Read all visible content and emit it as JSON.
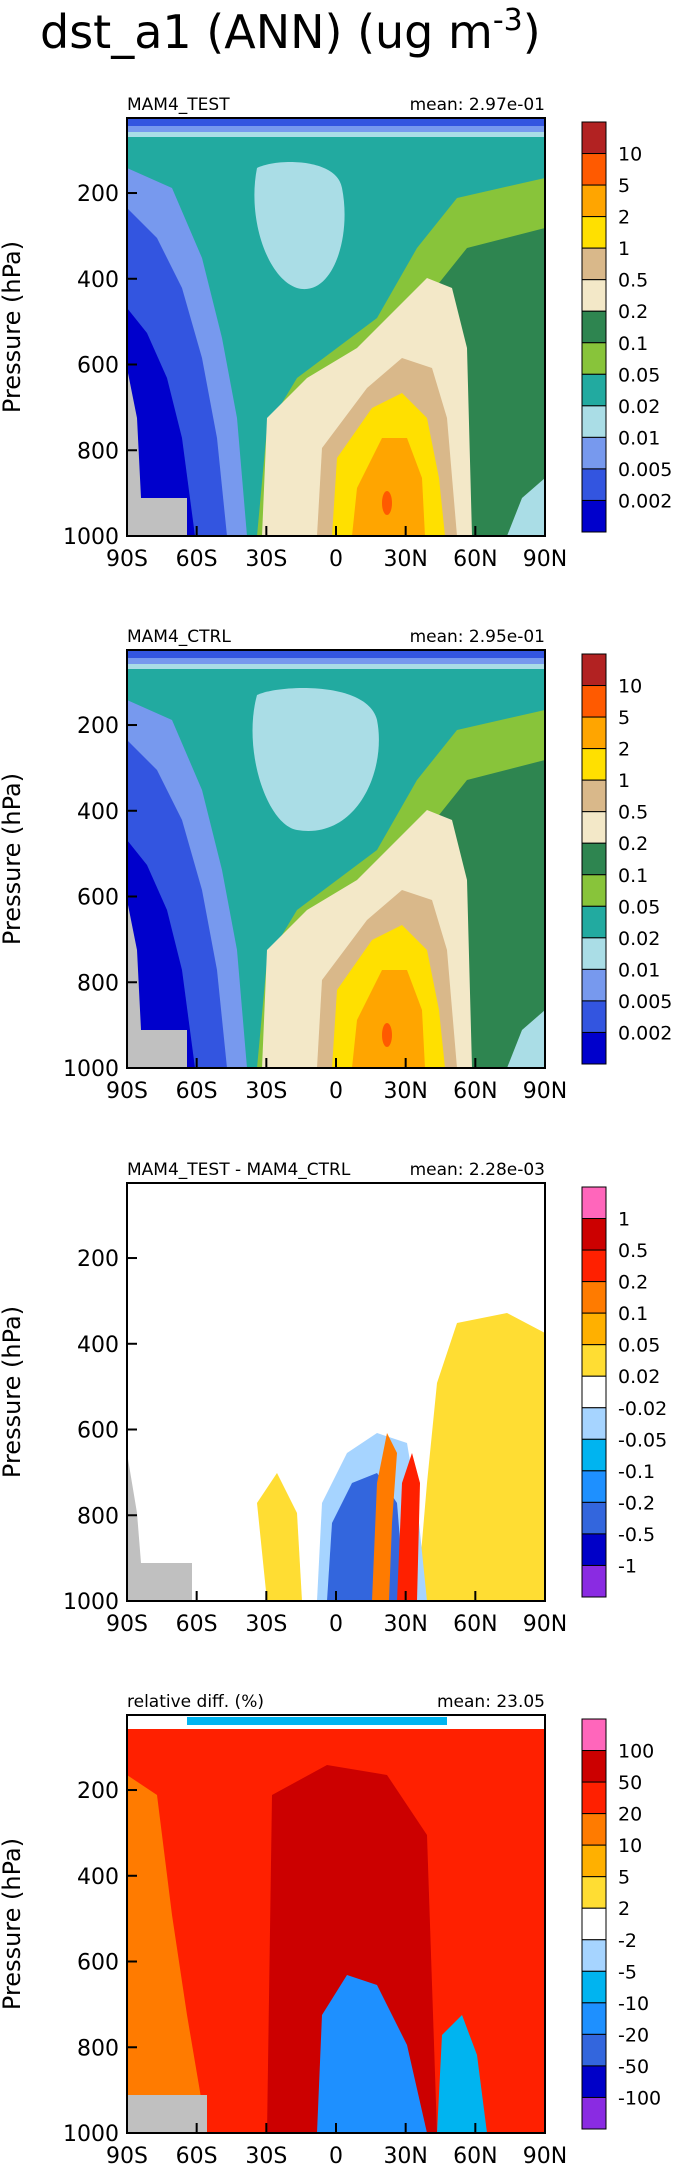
{
  "figure_title": "dst_a1 (ANN) (ug m",
  "figure_title_sup": "-3",
  "figure_title_end": ")",
  "colors": {
    "seq": [
      "#0000cc",
      "#3355e0",
      "#7799ee",
      "#aadde6",
      "#22aaa0",
      "#88c43a",
      "#2e8550",
      "#f3e8c8",
      "#d9b88a",
      "#ffe000",
      "#ffa500",
      "#ff5a00",
      "#b22222"
    ],
    "diff": [
      "#8a2be2",
      "#0000c8",
      "#3366dd",
      "#1e90ff",
      "#00b4f0",
      "#a6d4ff",
      "#ffffff",
      "#ffdd33",
      "#ffb000",
      "#ff7b00",
      "#ff2000",
      "#cc0000",
      "#ff66bb"
    ],
    "missing": "#c0c0c0",
    "grey": "#bebebe"
  },
  "chart_data": [
    {
      "type": "contour",
      "panel_label": "MAM4_TEST",
      "mean_label": "mean: 2.97e-01",
      "xlabel": "",
      "ylabel": "Pressure (hPa)",
      "x_ticks": [
        "90S",
        "60S",
        "30S",
        "0",
        "30N",
        "60N",
        "90N"
      ],
      "y_ticks": [
        "200",
        "400",
        "600",
        "800",
        "1000"
      ],
      "xlim": [
        -90,
        90
      ],
      "ylim": [
        1000,
        25
      ],
      "colorbar_levels": [
        "10",
        "5",
        "2",
        "1",
        "0.5",
        "0.2",
        "0.1",
        "0.05",
        "0.02",
        "0.01",
        "0.005",
        "0.002"
      ],
      "palette": "seq"
    },
    {
      "type": "contour",
      "panel_label": "MAM4_CTRL",
      "mean_label": "mean: 2.95e-01",
      "xlabel": "",
      "ylabel": "Pressure (hPa)",
      "x_ticks": [
        "90S",
        "60S",
        "30S",
        "0",
        "30N",
        "60N",
        "90N"
      ],
      "y_ticks": [
        "200",
        "400",
        "600",
        "800",
        "1000"
      ],
      "xlim": [
        -90,
        90
      ],
      "ylim": [
        1000,
        25
      ],
      "colorbar_levels": [
        "10",
        "5",
        "2",
        "1",
        "0.5",
        "0.2",
        "0.1",
        "0.05",
        "0.02",
        "0.01",
        "0.005",
        "0.002"
      ],
      "palette": "seq"
    },
    {
      "type": "contour",
      "panel_label": "MAM4_TEST - MAM4_CTRL",
      "mean_label": "mean: 2.28e-03",
      "xlabel": "",
      "ylabel": "Pressure (hPa)",
      "x_ticks": [
        "90S",
        "60S",
        "30S",
        "0",
        "30N",
        "60N",
        "90N"
      ],
      "y_ticks": [
        "200",
        "400",
        "600",
        "800",
        "1000"
      ],
      "xlim": [
        -90,
        90
      ],
      "ylim": [
        1000,
        25
      ],
      "colorbar_levels": [
        "1",
        "0.5",
        "0.2",
        "0.1",
        "0.05",
        "0.02",
        "-0.02",
        "-0.05",
        "-0.1",
        "-0.2",
        "-0.5",
        "-1"
      ],
      "palette": "diff"
    },
    {
      "type": "contour",
      "panel_label": "relative diff. (%)",
      "mean_label": "mean: 23.05",
      "xlabel": "",
      "ylabel": "Pressure (hPa)",
      "x_ticks": [
        "90S",
        "60S",
        "30S",
        "0",
        "30N",
        "60N",
        "90N"
      ],
      "y_ticks": [
        "200",
        "400",
        "600",
        "800",
        "1000"
      ],
      "xlim": [
        -90,
        90
      ],
      "ylim": [
        1000,
        25
      ],
      "colorbar_levels": [
        "100",
        "50",
        "20",
        "10",
        "5",
        "2",
        "-2",
        "-5",
        "-10",
        "-20",
        "-50",
        "-100"
      ],
      "palette": "diff"
    }
  ]
}
